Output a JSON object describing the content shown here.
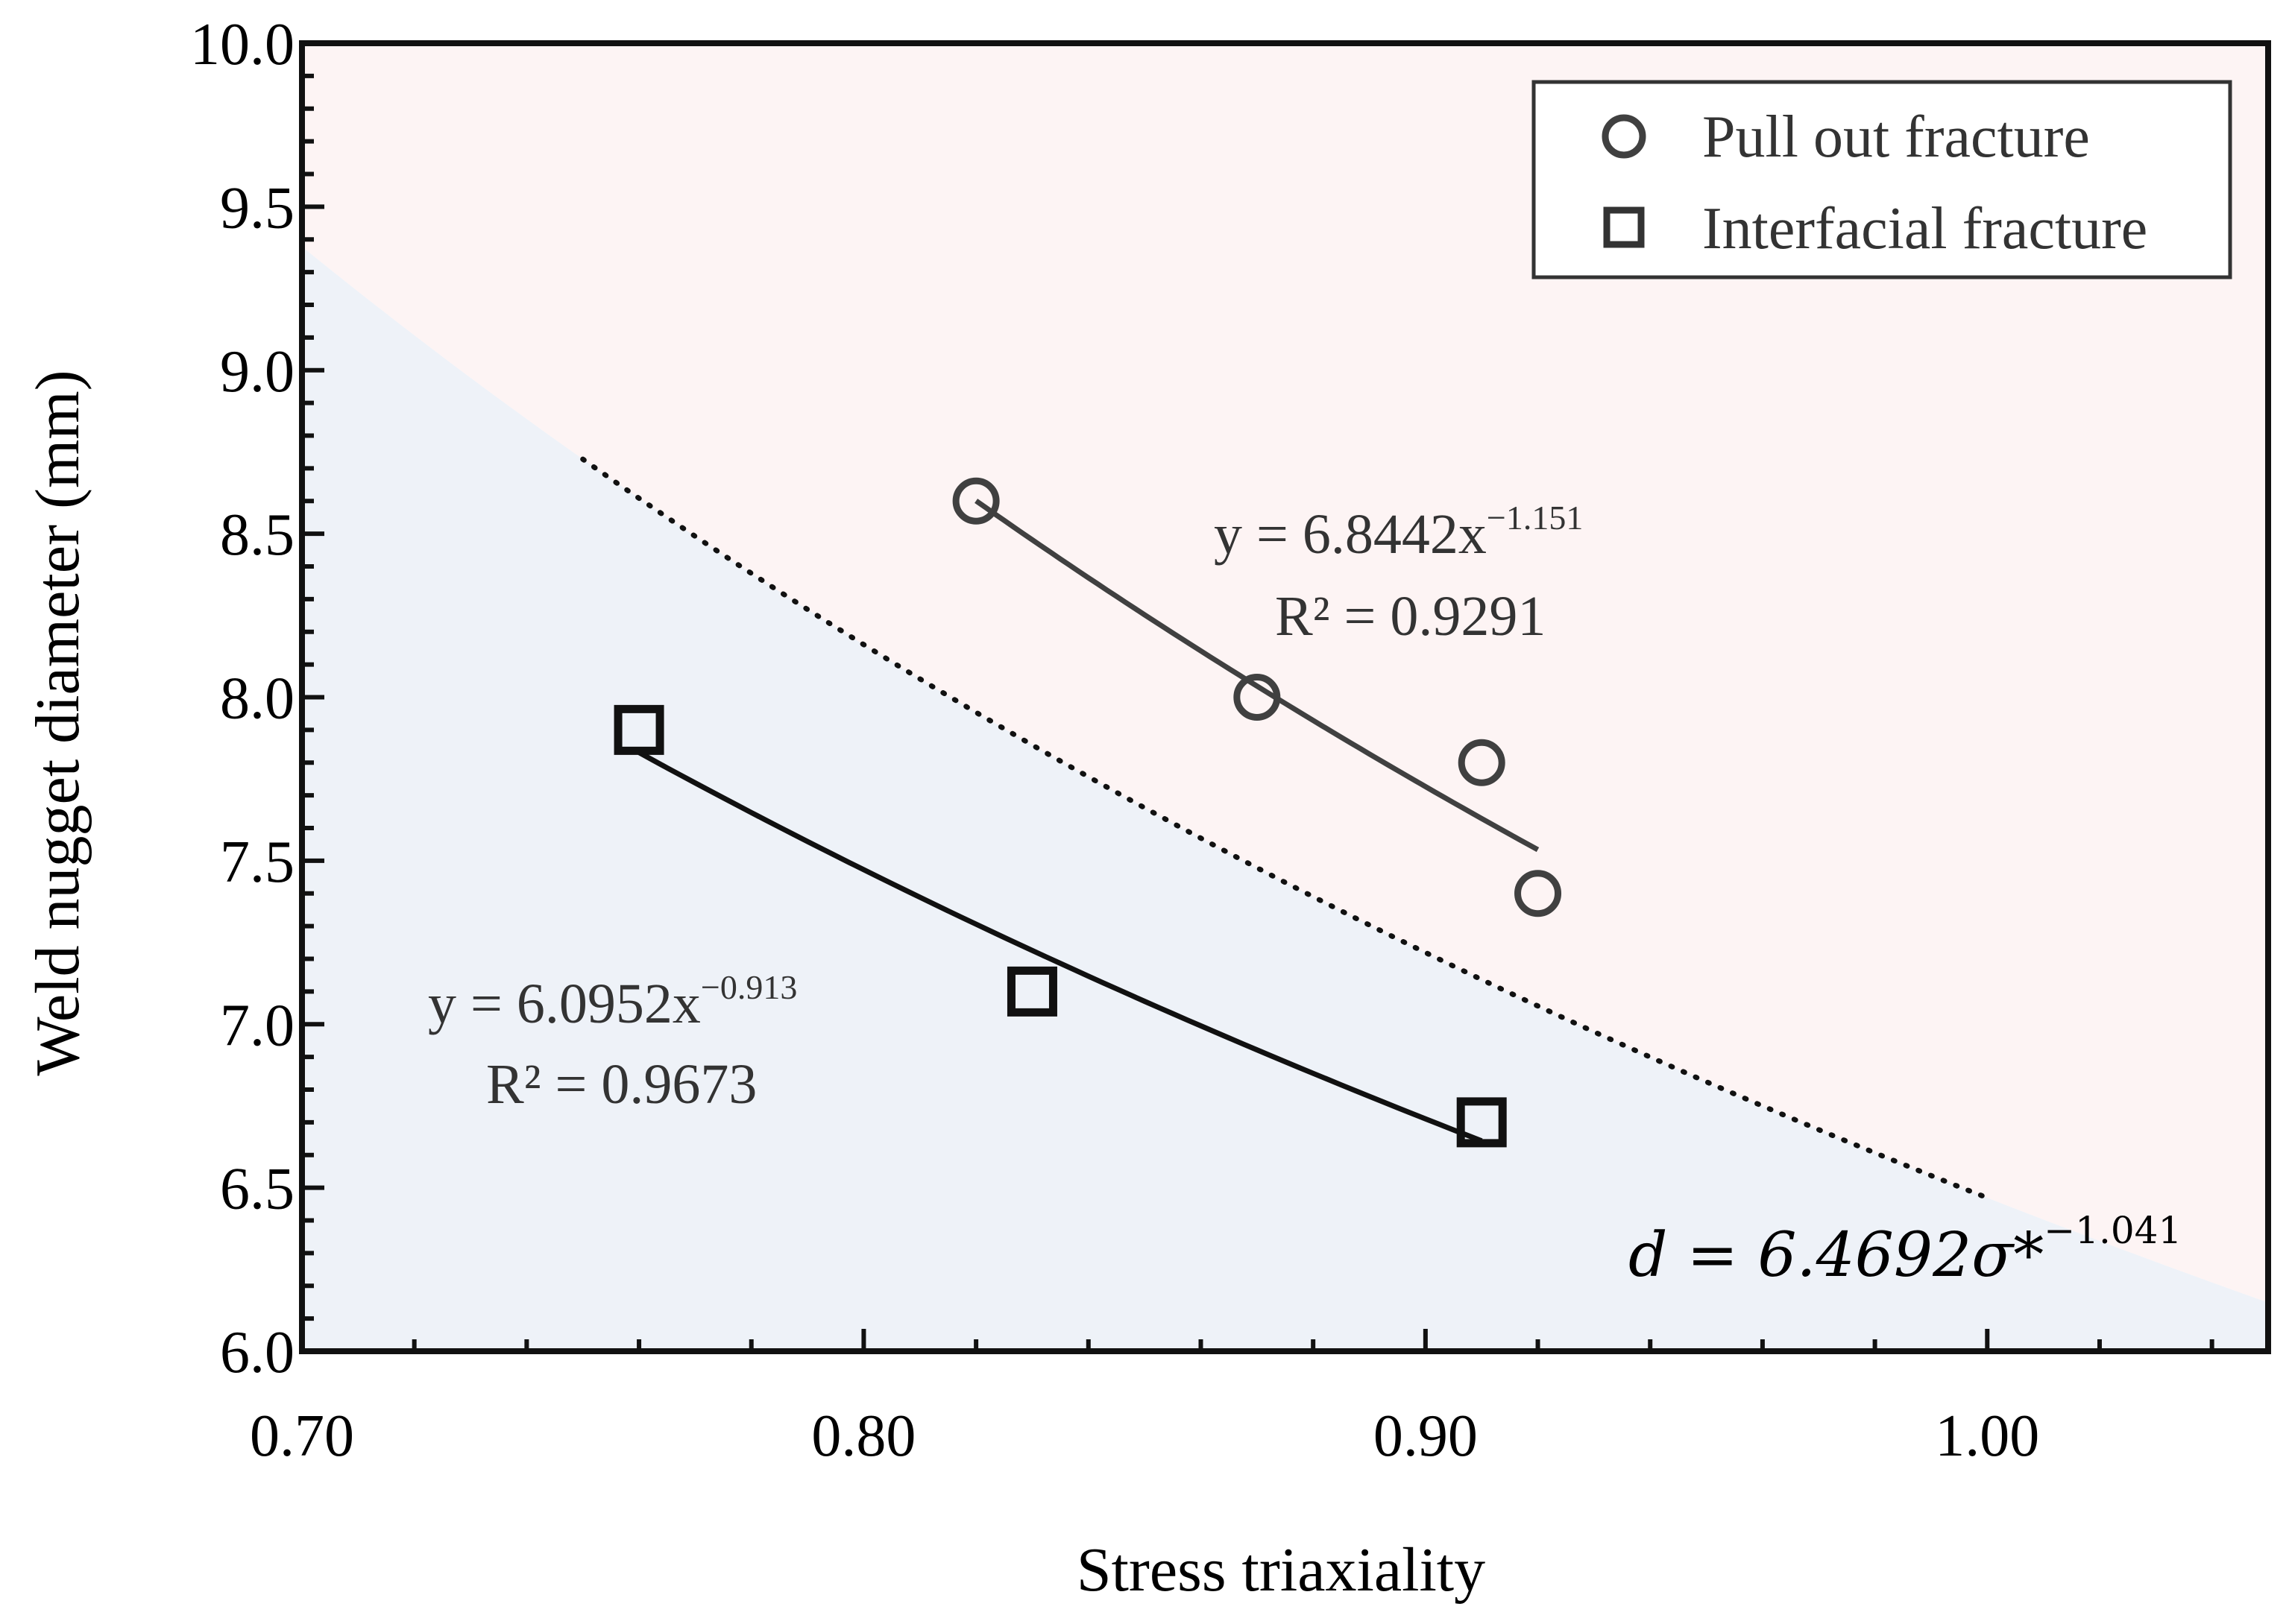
{
  "chart_data": {
    "type": "scatter",
    "title": "",
    "xlabel": "Stress triaxiality",
    "ylabel": "Weld nugget diameter (mm)",
    "xlim": [
      0.7,
      1.05
    ],
    "ylim": [
      6.0,
      10.0
    ],
    "x_ticks": [
      0.7,
      0.8,
      0.9,
      1.0
    ],
    "x_tick_labels": [
      "0.70",
      "0.80",
      "0.90",
      "1.00"
    ],
    "y_ticks": [
      6.0,
      6.5,
      7.0,
      7.5,
      8.0,
      8.5,
      9.0,
      9.5,
      10.0
    ],
    "y_tick_labels": [
      "6.0",
      "6.5",
      "7.0",
      "7.5",
      "8.0",
      "8.5",
      "9.0",
      "9.5",
      "10.0"
    ],
    "grid": false,
    "legend_position": "top-right",
    "series": [
      {
        "name": "Pull out fracture",
        "marker": "circle",
        "color": "#404040",
        "x": [
          0.82,
          0.87,
          0.91,
          0.92
        ],
        "y": [
          8.6,
          8.0,
          7.8,
          7.4
        ],
        "fit": {
          "coef": 6.8442,
          "exponent": -1.151,
          "x_range": [
            0.82,
            0.92
          ],
          "equation_prefix": "y = 6.8442x",
          "equation_exponent": "−1.151",
          "r2_label": "R² = 0.9291"
        }
      },
      {
        "name": "Interfacial fracture",
        "marker": "square",
        "color": "#111111",
        "x": [
          0.76,
          0.83,
          0.91
        ],
        "y": [
          7.9,
          7.1,
          6.7
        ],
        "fit": {
          "coef": 6.0952,
          "exponent": -0.913,
          "x_range": [
            0.76,
            0.91
          ],
          "equation_prefix": "y = 6.0952x",
          "equation_exponent": "−0.913",
          "r2_label": "R² = 0.9673"
        }
      }
    ],
    "boundary": {
      "coef": 6.4692,
      "exponent": -1.041,
      "dotted_x_range": [
        0.75,
        1.0
      ],
      "equation_main": "d = 6.4692σ*",
      "equation_exponent": "−1.041"
    },
    "regions": {
      "above_color": "#fdf4f4",
      "below_color": "#eef2f8"
    }
  }
}
